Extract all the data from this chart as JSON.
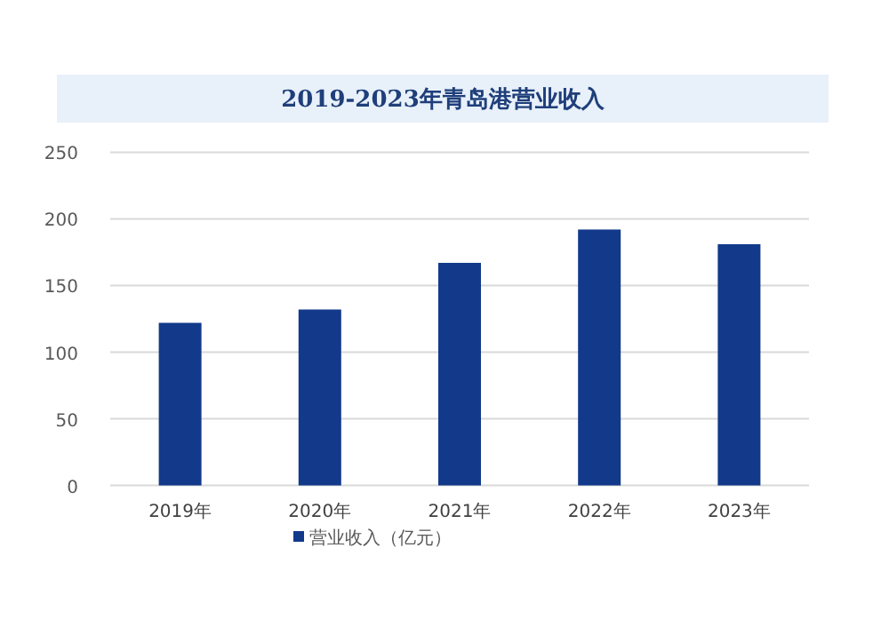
{
  "chart_data": {
    "type": "bar",
    "title": "2019-2023年青岛港营业收入",
    "categories": [
      "2019年",
      "2020年",
      "2021年",
      "2022年",
      "2023年"
    ],
    "series": [
      {
        "name": "营业收入（亿元）",
        "color": "#12398a",
        "values": [
          122,
          132,
          167,
          192,
          181
        ]
      }
    ],
    "ylim": [
      0,
      250
    ],
    "yticks": [
      0,
      50,
      100,
      150,
      200,
      250
    ],
    "grid": "y",
    "legend": "bottom"
  }
}
